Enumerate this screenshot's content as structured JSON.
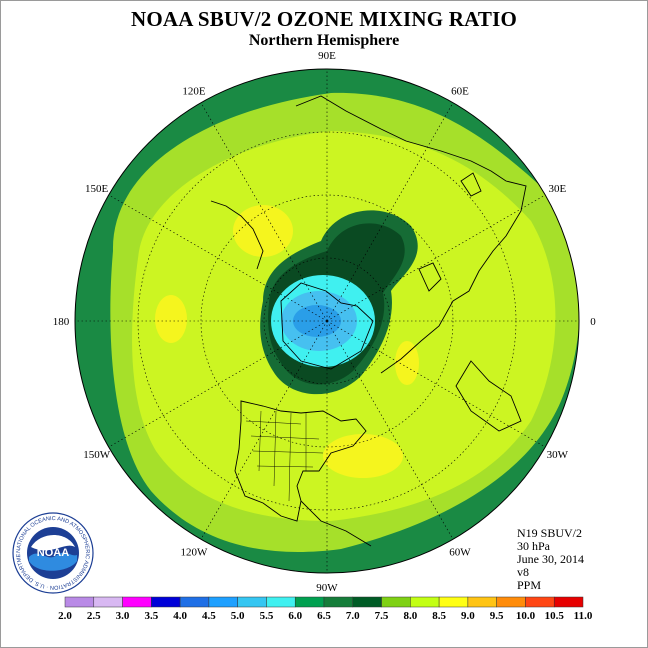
{
  "title": "NOAA SBUV/2 OZONE MIXING RATIO",
  "subtitle": "Northern Hemisphere",
  "meridian_labels": [
    {
      "text": "90E",
      "lon": 90
    },
    {
      "text": "60E",
      "lon": 60
    },
    {
      "text": "30E",
      "lon": 30
    },
    {
      "text": "0",
      "lon": 0
    },
    {
      "text": "30W",
      "lon": -30
    },
    {
      "text": "60W",
      "lon": -60
    },
    {
      "text": "90W",
      "lon": -90
    },
    {
      "text": "120W",
      "lon": -120
    },
    {
      "text": "150W",
      "lon": -150
    },
    {
      "text": "180",
      "lon": 180
    },
    {
      "text": "150E",
      "lon": 150
    },
    {
      "text": "120E",
      "lon": 120
    }
  ],
  "info": {
    "satellite": "N19 SBUV/2",
    "level": "30 hPa",
    "date": "June 30, 2014",
    "version": "v8",
    "units": "PPM"
  },
  "logo": {
    "text": "NOAA",
    "ring_text": "NATIONAL OCEANIC AND ATMOSPHERIC ADMINISTRATION · U.S. DEPARTMENT OF COMMERCE"
  },
  "colorbar": {
    "labels": [
      "2.0",
      "2.5",
      "3.0",
      "3.5",
      "4.0",
      "4.5",
      "5.0",
      "5.5",
      "6.0",
      "6.5",
      "7.0",
      "7.5",
      "8.0",
      "8.5",
      "9.0",
      "9.5",
      "10.0",
      "10.5",
      "11.0"
    ],
    "colors": [
      "#b98ae6",
      "#d8b8f2",
      "#ff00ff",
      "#0000d8",
      "#1f6fe6",
      "#1ea0ff",
      "#35c6f2",
      "#3ff0f0",
      "#00a050",
      "#157d3a",
      "#005c26",
      "#7fd114",
      "#c3ff14",
      "#ffff14",
      "#ffc414",
      "#ff8c0a",
      "#ff4614",
      "#e60000",
      "#8c5a3c"
    ]
  },
  "map_colors": {
    "ring": "#1a8a44",
    "outer": "#a6e02a",
    "mid": "#ccf522",
    "hi": "#f5f51e",
    "vortex_outer": "#166c35",
    "vortex": "#0a4a22",
    "pole_cyan": "#40f0f0",
    "pole_lightblue": "#46c0f0",
    "pole_blue": "#2a9ee8"
  }
}
